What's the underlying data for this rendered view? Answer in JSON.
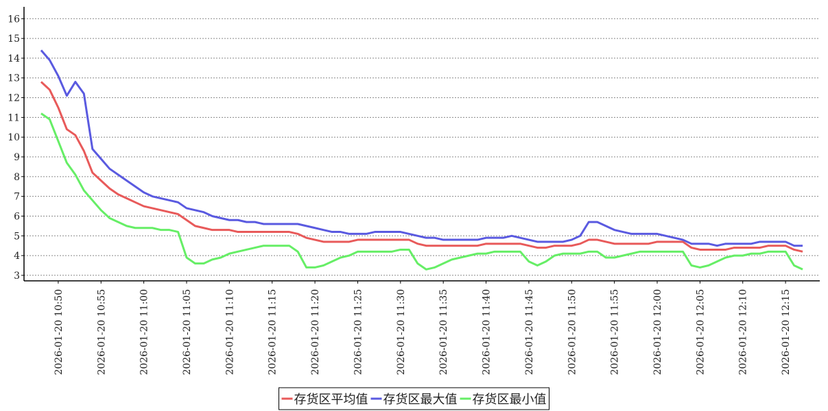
{
  "chart_data": {
    "type": "line",
    "x": [
      "2026-01-20 10:48",
      "2026-01-20 10:49",
      "2026-01-20 10:50",
      "2026-01-20 10:51",
      "2026-01-20 10:52",
      "2026-01-20 10:53",
      "2026-01-20 10:54",
      "2026-01-20 10:55",
      "2026-01-20 10:56",
      "2026-01-20 10:57",
      "2026-01-20 10:58",
      "2026-01-20 10:59",
      "2026-01-20 11:00",
      "2026-01-20 11:01",
      "2026-01-20 11:02",
      "2026-01-20 11:03",
      "2026-01-20 11:04",
      "2026-01-20 11:05",
      "2026-01-20 11:06",
      "2026-01-20 11:07",
      "2026-01-20 11:08",
      "2026-01-20 11:09",
      "2026-01-20 11:10",
      "2026-01-20 11:11",
      "2026-01-20 11:12",
      "2026-01-20 11:13",
      "2026-01-20 11:14",
      "2026-01-20 11:15",
      "2026-01-20 11:16",
      "2026-01-20 11:17",
      "2026-01-20 11:18",
      "2026-01-20 11:19",
      "2026-01-20 11:20",
      "2026-01-20 11:21",
      "2026-01-20 11:22",
      "2026-01-20 11:23",
      "2026-01-20 11:24",
      "2026-01-20 11:25",
      "2026-01-20 11:26",
      "2026-01-20 11:27",
      "2026-01-20 11:28",
      "2026-01-20 11:29",
      "2026-01-20 11:30",
      "2026-01-20 11:31",
      "2026-01-20 11:32",
      "2026-01-20 11:33",
      "2026-01-20 11:34",
      "2026-01-20 11:35",
      "2026-01-20 11:36",
      "2026-01-20 11:37",
      "2026-01-20 11:38",
      "2026-01-20 11:39",
      "2026-01-20 11:40",
      "2026-01-20 11:41",
      "2026-01-20 11:42",
      "2026-01-20 11:43",
      "2026-01-20 11:44",
      "2026-01-20 11:45",
      "2026-01-20 11:46",
      "2026-01-20 11:47",
      "2026-01-20 11:48",
      "2026-01-20 11:49",
      "2026-01-20 11:50",
      "2026-01-20 11:51",
      "2026-01-20 11:52",
      "2026-01-20 11:53",
      "2026-01-20 11:54",
      "2026-01-20 11:55",
      "2026-01-20 11:56",
      "2026-01-20 11:57",
      "2026-01-20 11:58",
      "2026-01-20 11:59",
      "2026-01-20 12:00",
      "2026-01-20 12:01",
      "2026-01-20 12:02",
      "2026-01-20 12:03",
      "2026-01-20 12:04",
      "2026-01-20 12:05",
      "2026-01-20 12:06",
      "2026-01-20 12:07",
      "2026-01-20 12:08",
      "2026-01-20 12:09",
      "2026-01-20 12:10",
      "2026-01-20 12:11",
      "2026-01-20 12:12",
      "2026-01-20 12:13",
      "2026-01-20 12:14",
      "2026-01-20 12:15",
      "2026-01-20 12:16",
      "2026-01-20 12:17"
    ],
    "series": [
      {
        "name": "存货区平均值",
        "color": "#e85a5a",
        "values": [
          12.8,
          12.4,
          11.5,
          10.4,
          10.1,
          9.3,
          8.2,
          7.8,
          7.4,
          7.1,
          6.9,
          6.7,
          6.5,
          6.4,
          6.3,
          6.2,
          6.1,
          5.8,
          5.5,
          5.4,
          5.3,
          5.3,
          5.3,
          5.2,
          5.2,
          5.2,
          5.2,
          5.2,
          5.2,
          5.2,
          5.1,
          4.9,
          4.8,
          4.7,
          4.7,
          4.7,
          4.7,
          4.8,
          4.8,
          4.8,
          4.8,
          4.8,
          4.8,
          4.8,
          4.6,
          4.5,
          4.5,
          4.5,
          4.5,
          4.5,
          4.5,
          4.5,
          4.6,
          4.6,
          4.6,
          4.6,
          4.6,
          4.5,
          4.4,
          4.4,
          4.5,
          4.5,
          4.5,
          4.6,
          4.8,
          4.8,
          4.7,
          4.6,
          4.6,
          4.6,
          4.6,
          4.6,
          4.7,
          4.7,
          4.7,
          4.7,
          4.4,
          4.3,
          4.3,
          4.3,
          4.3,
          4.4,
          4.4,
          4.4,
          4.4,
          4.5,
          4.5,
          4.5,
          4.3,
          4.2
        ]
      },
      {
        "name": "存货区最大值",
        "color": "#5a5ae0",
        "values": [
          14.4,
          13.9,
          13.1,
          12.1,
          12.8,
          12.2,
          9.4,
          8.9,
          8.4,
          8.1,
          7.8,
          7.5,
          7.2,
          7.0,
          6.9,
          6.8,
          6.7,
          6.4,
          6.3,
          6.2,
          6.0,
          5.9,
          5.8,
          5.8,
          5.7,
          5.7,
          5.6,
          5.6,
          5.6,
          5.6,
          5.6,
          5.5,
          5.4,
          5.3,
          5.2,
          5.2,
          5.1,
          5.1,
          5.1,
          5.2,
          5.2,
          5.2,
          5.2,
          5.1,
          5.0,
          4.9,
          4.9,
          4.8,
          4.8,
          4.8,
          4.8,
          4.8,
          4.9,
          4.9,
          4.9,
          5.0,
          4.9,
          4.8,
          4.7,
          4.7,
          4.7,
          4.7,
          4.8,
          5.0,
          5.7,
          5.7,
          5.5,
          5.3,
          5.2,
          5.1,
          5.1,
          5.1,
          5.1,
          5.0,
          4.9,
          4.8,
          4.6,
          4.6,
          4.6,
          4.5,
          4.6,
          4.6,
          4.6,
          4.6,
          4.7,
          4.7,
          4.7,
          4.7,
          4.5,
          4.5
        ]
      },
      {
        "name": "存货区最小值",
        "color": "#66ee66",
        "values": [
          11.2,
          10.9,
          9.8,
          8.7,
          8.1,
          7.3,
          6.8,
          6.3,
          5.9,
          5.7,
          5.5,
          5.4,
          5.4,
          5.4,
          5.3,
          5.3,
          5.2,
          3.9,
          3.6,
          3.6,
          3.8,
          3.9,
          4.1,
          4.2,
          4.3,
          4.4,
          4.5,
          4.5,
          4.5,
          4.5,
          4.2,
          3.4,
          3.4,
          3.5,
          3.7,
          3.9,
          4.0,
          4.2,
          4.2,
          4.2,
          4.2,
          4.2,
          4.3,
          4.3,
          3.6,
          3.3,
          3.4,
          3.6,
          3.8,
          3.9,
          4.0,
          4.1,
          4.1,
          4.2,
          4.2,
          4.2,
          4.2,
          3.7,
          3.5,
          3.7,
          4.0,
          4.1,
          4.1,
          4.1,
          4.2,
          4.2,
          3.9,
          3.9,
          4.0,
          4.1,
          4.2,
          4.2,
          4.2,
          4.2,
          4.2,
          4.2,
          3.5,
          3.4,
          3.5,
          3.7,
          3.9,
          4.0,
          4.0,
          4.1,
          4.1,
          4.2,
          4.2,
          4.2,
          3.5,
          3.3
        ]
      }
    ],
    "xlim": [
      "2026-01-20 10:46",
      "2026-01-20 12:19"
    ],
    "xticks": [
      "2026-01-20 10:50",
      "2026-01-20 10:55",
      "2026-01-20 11:00",
      "2026-01-20 11:05",
      "2026-01-20 11:10",
      "2026-01-20 11:15",
      "2026-01-20 11:20",
      "2026-01-20 11:25",
      "2026-01-20 11:30",
      "2026-01-20 11:35",
      "2026-01-20 11:40",
      "2026-01-20 11:45",
      "2026-01-20 11:50",
      "2026-01-20 11:55",
      "2026-01-20 12:00",
      "2026-01-20 12:05",
      "2026-01-20 12:10",
      "2026-01-20 12:15"
    ],
    "ylim": [
      2.72,
      16.6
    ],
    "yticks": [
      3,
      4,
      5,
      6,
      7,
      8,
      9,
      10,
      11,
      12,
      13,
      14,
      15,
      16
    ],
    "grid": true,
    "legend": "bottom"
  }
}
